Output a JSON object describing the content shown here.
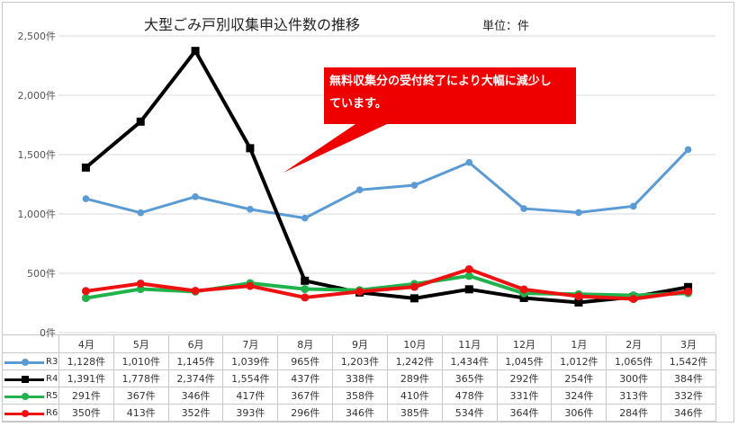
{
  "chart_data": {
    "type": "line",
    "title": "大型ごみ戸別収集申込件数の推移",
    "unit_label": "単位：件",
    "categories": [
      "4月",
      "5月",
      "6月",
      "7月",
      "8月",
      "9月",
      "10月",
      "11月",
      "12月",
      "1月",
      "2月",
      "3月"
    ],
    "y_ticks": [
      "0件",
      "500件",
      "1,000件",
      "1,500件",
      "2,000件",
      "2,500件"
    ],
    "ylim": [
      0,
      2500
    ],
    "series": [
      {
        "name": "R3",
        "color": "#5b9bd5",
        "marker": "circle",
        "width": 3,
        "values": [
          1128,
          1010,
          1145,
          1039,
          965,
          1203,
          1242,
          1434,
          1045,
          1012,
          1065,
          1542
        ],
        "labels": [
          "1,128件",
          "1,010件",
          "1,145件",
          "1,039件",
          "965件",
          "1,203件",
          "1,242件",
          "1,434件",
          "1,045件",
          "1,012件",
          "1,065件",
          "1,542件"
        ]
      },
      {
        "name": "R4",
        "color": "#000000",
        "marker": "square",
        "width": 4,
        "values": [
          1391,
          1778,
          2374,
          1554,
          437,
          338,
          289,
          365,
          292,
          254,
          300,
          384
        ],
        "labels": [
          "1,391件",
          "1,778件",
          "2,374件",
          "1,554件",
          "437件",
          "338件",
          "289件",
          "365件",
          "292件",
          "254件",
          "300件",
          "384件"
        ]
      },
      {
        "name": "R5",
        "color": "#21b24b",
        "marker": "circle",
        "width": 4,
        "values": [
          291,
          367,
          346,
          417,
          367,
          358,
          410,
          478,
          331,
          324,
          313,
          332
        ],
        "labels": [
          "291件",
          "367件",
          "346件",
          "417件",
          "367件",
          "358件",
          "410件",
          "478件",
          "331件",
          "324件",
          "313件",
          "332件"
        ]
      },
      {
        "name": "R6",
        "color": "#ee1111",
        "marker": "circle",
        "width": 4,
        "values": [
          350,
          413,
          352,
          393,
          296,
          346,
          385,
          534,
          364,
          306,
          284,
          346
        ],
        "labels": [
          "350件",
          "413件",
          "352件",
          "393件",
          "296件",
          "346件",
          "385件",
          "534件",
          "364件",
          "306件",
          "284件",
          "346件"
        ]
      }
    ],
    "annotation": {
      "text": "無料収集分の受付終了により大幅に減少しています。",
      "fill": "#ee0000"
    }
  }
}
